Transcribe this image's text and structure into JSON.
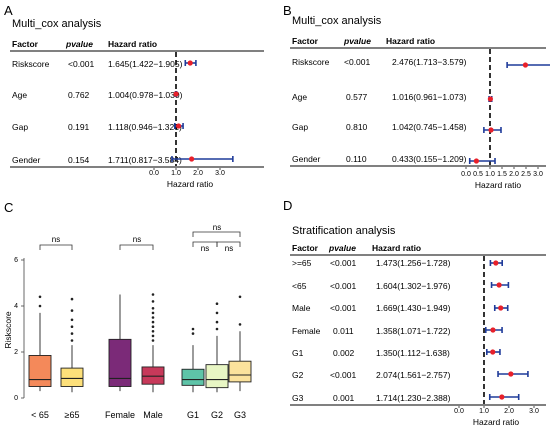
{
  "panels": {
    "A": {
      "letter": "A",
      "title": "Multi_cox analysis",
      "headers": {
        "factor": "Factor",
        "pvalue": "pvalue",
        "hr": "Hazard ratio"
      },
      "xlabel": "Hazard ratio",
      "ticks": [
        "0.0",
        "1.0",
        "2.0",
        "3.0"
      ],
      "rows": [
        {
          "factor": "Riskscore",
          "pvalue": "<0.001",
          "hr_text": "1.645(1.422−1.905)"
        },
        {
          "factor": "Age",
          "pvalue": "0.762",
          "hr_text": "1.004(0.978−1.030)"
        },
        {
          "factor": "Gap",
          "pvalue": "0.191",
          "hr_text": "1.118(0.946−1.321)"
        },
        {
          "factor": "Gender",
          "pvalue": "0.154",
          "hr_text": "1.711(0.817−3.584)"
        }
      ]
    },
    "B": {
      "letter": "B",
      "title": "Multi_cox analysis",
      "headers": {
        "factor": "Factor",
        "pvalue": "pvalue",
        "hr": "Hazard ratio"
      },
      "xlabel": "Hazard ratio",
      "ticks": [
        "0.0",
        "0.5",
        "1.0",
        "1.5",
        "2.0",
        "2.5",
        "3.0"
      ],
      "rows": [
        {
          "factor": "Riskscore",
          "pvalue": "<0.001",
          "hr_text": "2.476(1.713−3.579)"
        },
        {
          "factor": "Age",
          "pvalue": "0.577",
          "hr_text": "1.016(0.961−1.073)"
        },
        {
          "factor": "Gap",
          "pvalue": "0.810",
          "hr_text": "1.042(0.745−1.458)"
        },
        {
          "factor": "Gender",
          "pvalue": "0.110",
          "hr_text": "0.433(0.155−1.209)"
        }
      ]
    },
    "C": {
      "letter": "C",
      "ylabel": "Riskscore",
      "yticks": [
        "0",
        "2",
        "4",
        "6"
      ],
      "sig_label": "ns",
      "groups": [
        "< 65",
        "≥65",
        "Female",
        "Male",
        "G1",
        "G2",
        "G3"
      ]
    },
    "D": {
      "letter": "D",
      "title": "Stratification analysis",
      "headers": {
        "factor": "Factor",
        "pvalue": "pvalue",
        "hr": "Hazard ratio"
      },
      "xlabel": "Hazard ratio",
      "ticks": [
        "0.0",
        "1.0",
        "2.0",
        "3.0"
      ],
      "rows": [
        {
          "factor": ">=65",
          "pvalue": "<0.001",
          "hr_text": "1.473(1.256−1.728)"
        },
        {
          "factor": "<65",
          "pvalue": "<0.001",
          "hr_text": "1.604(1.302−1.976)"
        },
        {
          "factor": "Male",
          "pvalue": "<0.001",
          "hr_text": "1.669(1.430−1.949)"
        },
        {
          "factor": "Female",
          "pvalue": "0.011",
          "hr_text": "1.358(1.071−1.722)"
        },
        {
          "factor": "G1",
          "pvalue": "0.002",
          "hr_text": "1.350(1.112−1.638)"
        },
        {
          "factor": "G2",
          "pvalue": "<0.001",
          "hr_text": "2.074(1.561−2.757)"
        },
        {
          "factor": "G3",
          "pvalue": "0.001",
          "hr_text": "1.714(1.230−2.388)"
        }
      ]
    }
  },
  "chart_data": [
    {
      "panel": "A",
      "type": "forest",
      "xlabel": "Hazard ratio",
      "xlim": [
        0,
        3.5
      ],
      "reference": 1,
      "series": [
        {
          "name": "Riskscore",
          "hr": 1.645,
          "lower": 1.422,
          "upper": 1.905
        },
        {
          "name": "Age",
          "hr": 1.004,
          "lower": 0.978,
          "upper": 1.03
        },
        {
          "name": "Gap",
          "hr": 1.118,
          "lower": 0.946,
          "upper": 1.321
        },
        {
          "name": "Gender",
          "hr": 1.711,
          "lower": 0.817,
          "upper": 3.584
        }
      ]
    },
    {
      "panel": "B",
      "type": "forest",
      "xlabel": "Hazard ratio",
      "xlim": [
        0,
        3.6
      ],
      "reference": 1,
      "series": [
        {
          "name": "Riskscore",
          "hr": 2.476,
          "lower": 1.713,
          "upper": 3.579
        },
        {
          "name": "Age",
          "hr": 1.016,
          "lower": 0.961,
          "upper": 1.073
        },
        {
          "name": "Gap",
          "hr": 1.042,
          "lower": 0.745,
          "upper": 1.458
        },
        {
          "name": "Gender",
          "hr": 0.433,
          "lower": 0.155,
          "upper": 1.209
        }
      ]
    },
    {
      "panel": "C",
      "type": "box",
      "ylabel": "Riskscore",
      "ylim": [
        0,
        6.5
      ],
      "boxes": [
        {
          "group": "< 65",
          "color": "#f4895a",
          "whisker_low": 0.3,
          "q1": 0.5,
          "median": 0.8,
          "q3": 1.85,
          "whisker_high": 3.7,
          "outliers": [
            4.0,
            4.4
          ]
        },
        {
          "group": "≥65",
          "color": "#fde07a",
          "whisker_low": 0.25,
          "q1": 0.5,
          "median": 0.85,
          "q3": 1.3,
          "whisker_high": 2.3,
          "outliers": [
            2.5,
            2.8,
            3.1,
            3.4,
            3.8,
            4.3
          ]
        },
        {
          "group": "Female",
          "color": "#7b2a78",
          "whisker_low": 0.3,
          "q1": 0.5,
          "median": 0.85,
          "q3": 2.55,
          "whisker_high": 4.5,
          "outliers": []
        },
        {
          "group": "Male",
          "color": "#c7395a",
          "whisker_low": 0.25,
          "q1": 0.6,
          "median": 0.95,
          "q3": 1.35,
          "whisker_high": 2.3,
          "outliers": [
            2.5,
            2.7,
            2.9,
            3.1,
            3.3,
            3.5,
            3.7,
            3.9,
            4.2,
            4.5
          ]
        },
        {
          "group": "G1",
          "color": "#5ec4a8",
          "whisker_low": 0.25,
          "q1": 0.55,
          "median": 0.8,
          "q3": 1.25,
          "whisker_high": 2.3,
          "outliers": [
            2.8,
            3.0
          ]
        },
        {
          "group": "G2",
          "color": "#e8f6c4",
          "whisker_low": 0.25,
          "q1": 0.45,
          "median": 0.8,
          "q3": 1.45,
          "whisker_high": 2.7,
          "outliers": [
            3.0,
            3.3,
            3.7,
            4.1
          ]
        },
        {
          "group": "G3",
          "color": "#fbe29c",
          "whisker_low": 0.3,
          "q1": 0.7,
          "median": 1.0,
          "q3": 1.6,
          "whisker_high": 2.9,
          "outliers": [
            3.2,
            4.4
          ]
        }
      ]
    },
    {
      "panel": "D",
      "type": "forest",
      "xlabel": "Hazard ratio",
      "xlim": [
        0,
        3.5
      ],
      "reference": 1,
      "series": [
        {
          "name": ">=65",
          "hr": 1.473,
          "lower": 1.256,
          "upper": 1.728
        },
        {
          "name": "<65",
          "hr": 1.604,
          "lower": 1.302,
          "upper": 1.976
        },
        {
          "name": "Male",
          "hr": 1.669,
          "lower": 1.43,
          "upper": 1.949
        },
        {
          "name": "Female",
          "hr": 1.358,
          "lower": 1.071,
          "upper": 1.722
        },
        {
          "name": "G1",
          "hr": 1.35,
          "lower": 1.112,
          "upper": 1.638
        },
        {
          "name": "G2",
          "hr": 2.074,
          "lower": 1.561,
          "upper": 2.757
        },
        {
          "name": "G3",
          "hr": 1.714,
          "lower": 1.23,
          "upper": 2.388
        }
      ]
    }
  ],
  "colors": {
    "point": "#e8202a",
    "ci": "#1f3b9a",
    "reference": "#000000"
  }
}
